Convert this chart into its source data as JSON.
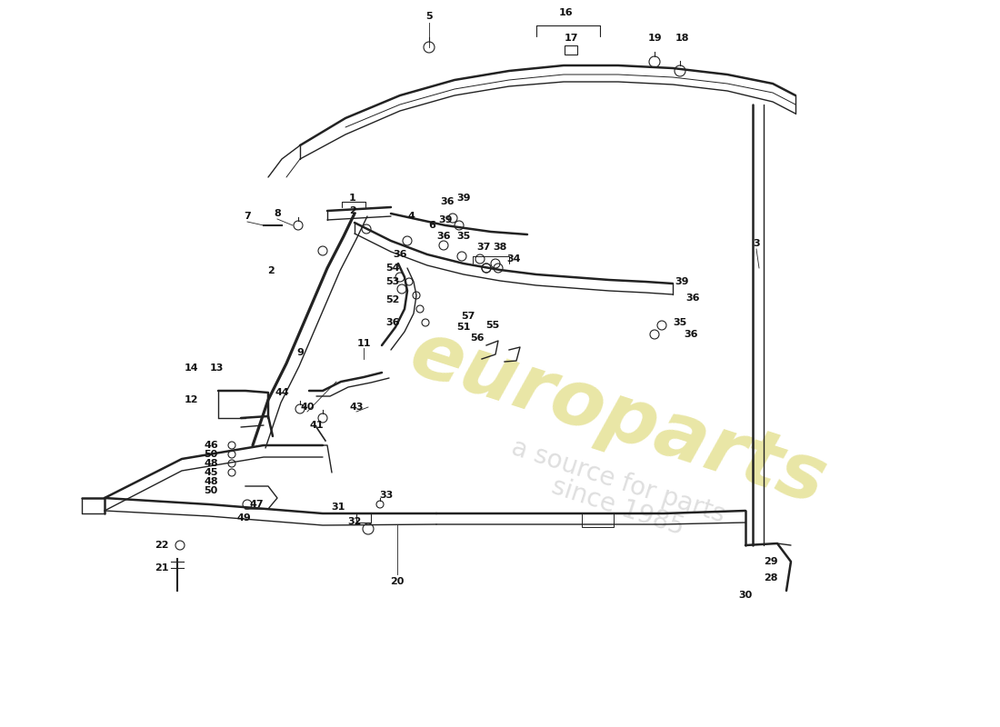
{
  "bg_color": "#ffffff",
  "line_color": "#222222",
  "label_color": "#111111",
  "watermark1": "europarts",
  "watermark2": "a source for parts",
  "watermark3": "since 1985",
  "wm_color1": "#c8c020",
  "wm_color2": "#aaaaaa"
}
